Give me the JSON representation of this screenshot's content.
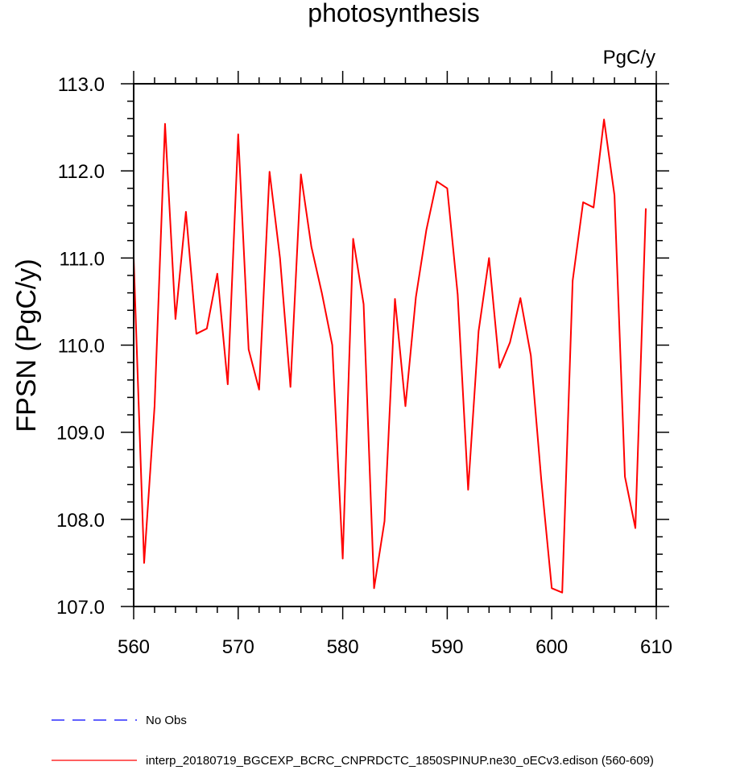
{
  "chart_data": {
    "type": "line",
    "title": "photosynthesis",
    "units_label": "PgC/y",
    "xlabel": "",
    "ylabel": "FPSN  (PgC/y)",
    "xlim": [
      560,
      610
    ],
    "ylim": [
      107.0,
      113.0
    ],
    "x_ticks": [
      560,
      570,
      580,
      590,
      600,
      610
    ],
    "x_tick_labels": [
      "560",
      "570",
      "580",
      "590",
      "600",
      "610"
    ],
    "y_ticks": [
      107,
      108,
      109,
      110,
      111,
      112,
      113
    ],
    "y_tick_labels": [
      "107.0",
      "108.0",
      "109.0",
      "110.0",
      "111.0",
      "112.0",
      "113.0"
    ],
    "grid": false,
    "series": [
      {
        "name": "interp_20180719_BGCEXP_BCRC_CNPRDCTC_1850SPINUP.ne30_oECv3.edison (560-609)",
        "color": "#ff0000",
        "dash": "solid",
        "x": [
          560,
          561,
          562,
          563,
          564,
          565,
          566,
          567,
          568,
          569,
          570,
          571,
          572,
          573,
          574,
          575,
          576,
          577,
          578,
          579,
          580,
          581,
          582,
          583,
          584,
          585,
          586,
          587,
          588,
          589,
          590,
          591,
          592,
          593,
          594,
          595,
          596,
          597,
          598,
          599,
          600,
          601,
          602,
          603,
          604,
          605,
          606,
          607,
          608,
          609
        ],
        "values": [
          111.0,
          107.5,
          109.3,
          112.54,
          110.3,
          111.53,
          110.13,
          110.19,
          110.82,
          109.55,
          112.42,
          109.95,
          109.49,
          111.99,
          111.0,
          109.52,
          111.96,
          111.13,
          110.6,
          110.0,
          107.55,
          111.22,
          110.47,
          107.21,
          107.98,
          110.53,
          109.3,
          110.55,
          111.32,
          111.88,
          111.8,
          110.58,
          108.34,
          110.16,
          111.0,
          109.74,
          110.03,
          110.54,
          109.88,
          108.45,
          107.21,
          107.16,
          110.74,
          111.64,
          111.58,
          112.59,
          111.72,
          108.49,
          107.9,
          111.57
        ]
      },
      {
        "name": "No Obs",
        "color": "#0000ff",
        "dash": "dashed",
        "x": [],
        "values": []
      }
    ],
    "legend_position": "bottom-left"
  }
}
